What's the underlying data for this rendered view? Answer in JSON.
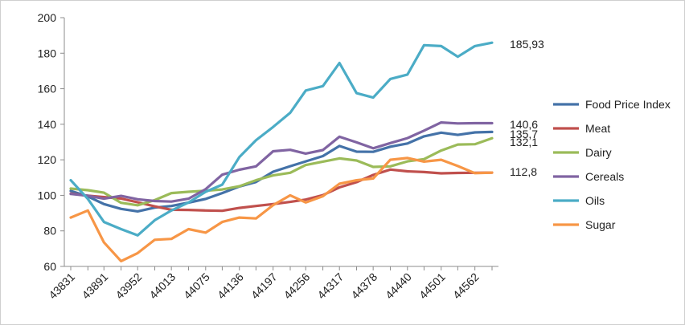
{
  "chart_data": {
    "type": "line",
    "x": [
      43831,
      43862,
      43891,
      43922,
      43952,
      43983,
      44013,
      44044,
      44075,
      44105,
      44136,
      44166,
      44197,
      44228,
      44256,
      44287,
      44317,
      44348,
      44378,
      44409,
      44440,
      44470,
      44501,
      44531,
      44562,
      44593
    ],
    "x_tick_labels": [
      "43831",
      "43891",
      "43952",
      "44013",
      "44075",
      "44136",
      "44197",
      "44256",
      "44317",
      "44378",
      "44440",
      "44501",
      "44562"
    ],
    "ylim": [
      60,
      200
    ],
    "y_ticks": [
      60,
      80,
      100,
      120,
      140,
      160,
      180,
      200
    ],
    "y_tick_labels": [
      "60",
      "80",
      "100",
      "120",
      "140",
      "160",
      "180",
      "200"
    ],
    "grid": false,
    "legend_position": "right",
    "series": [
      {
        "name": "Food Price Index",
        "color": "#4472a8",
        "values": [
          102.5,
          99.4,
          95.1,
          92.4,
          91.0,
          93.1,
          94.0,
          95.9,
          98.0,
          101.3,
          105.0,
          107.5,
          113.3,
          116.4,
          119.1,
          122.1,
          127.8,
          124.6,
          124.5,
          127.4,
          129.2,
          133.2,
          135.3,
          134.0,
          135.4,
          135.7
        ]
      },
      {
        "name": "Meat",
        "color": "#c0504d",
        "values": [
          101.0,
          99.8,
          99.0,
          98.2,
          96.1,
          93.8,
          91.9,
          91.8,
          91.5,
          91.3,
          92.9,
          94.0,
          95.1,
          96.3,
          97.6,
          100.1,
          104.5,
          107.4,
          111.5,
          114.5,
          113.5,
          113.1,
          112.4,
          112.6,
          112.7,
          112.8
        ]
      },
      {
        "name": "Dairy",
        "color": "#9bbb59",
        "values": [
          103.8,
          102.9,
          101.5,
          95.8,
          94.4,
          97.3,
          101.3,
          102.0,
          102.6,
          103.3,
          105.1,
          108.5,
          111.2,
          112.7,
          117.1,
          119.0,
          120.8,
          119.6,
          116.0,
          116.3,
          119.1,
          120.4,
          125.2,
          128.6,
          128.8,
          132.1
        ]
      },
      {
        "name": "Cereals",
        "color": "#8064a2",
        "values": [
          100.8,
          99.8,
          98.1,
          99.7,
          97.8,
          96.8,
          96.5,
          98.1,
          103.5,
          111.6,
          114.4,
          116.3,
          124.8,
          125.6,
          123.5,
          125.5,
          133.0,
          129.8,
          126.5,
          129.4,
          132.2,
          136.4,
          141.0,
          140.5,
          140.6,
          140.6
        ]
      },
      {
        "name": "Oils",
        "color": "#4bacc6",
        "values": [
          108.5,
          98.0,
          85.0,
          81.0,
          77.5,
          86.0,
          91.5,
          96.0,
          102.0,
          106.0,
          121.5,
          131.0,
          138.5,
          146.5,
          159.0,
          161.5,
          174.5,
          157.5,
          155.0,
          165.5,
          168.0,
          184.5,
          184.0,
          178.0,
          184.0,
          185.93
        ]
      },
      {
        "name": "Sugar",
        "color": "#f79646",
        "values": [
          87.5,
          91.5,
          73.5,
          63.0,
          67.5,
          75.0,
          75.5,
          81.0,
          79.0,
          85.0,
          87.5,
          87.0,
          94.5,
          100.0,
          96.0,
          99.5,
          106.5,
          108.5,
          109.5,
          120.0,
          121.0,
          119.0,
          120.0,
          116.5,
          112.5,
          112.8
        ]
      }
    ],
    "end_labels": [
      "185,93",
      "140,6",
      "135,7",
      "132,1",
      "112,8"
    ]
  }
}
